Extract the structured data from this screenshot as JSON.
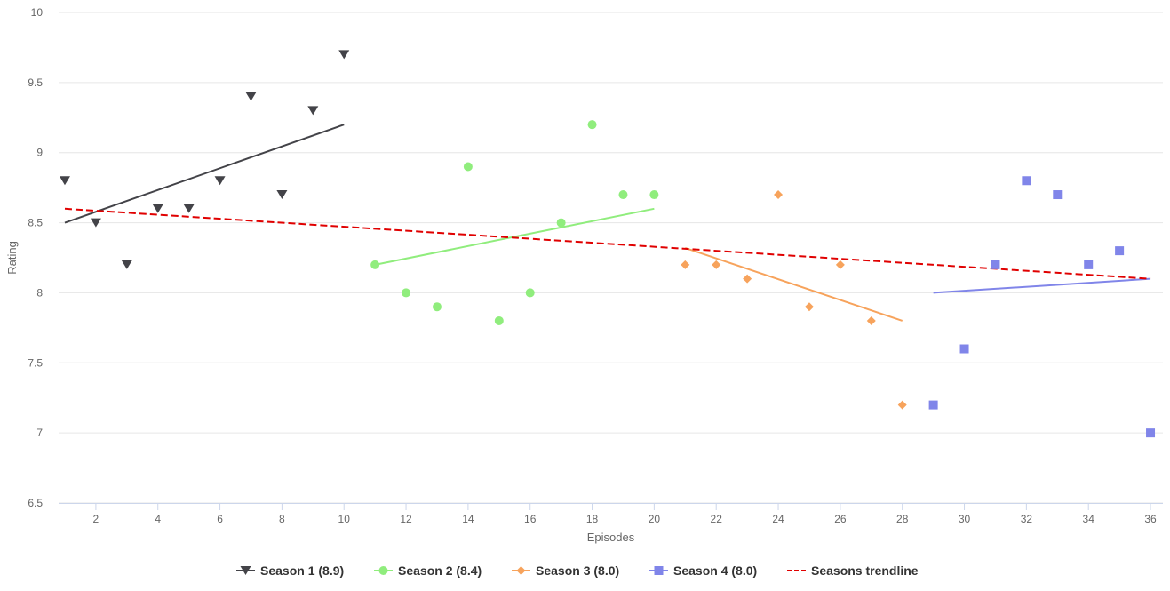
{
  "chart_data": {
    "type": "scatter",
    "xlabel": "Episodes",
    "ylabel": "Rating",
    "xlim": [
      0.8,
      36.4
    ],
    "ylim": [
      6.5,
      10
    ],
    "x_ticks": [
      2,
      4,
      6,
      8,
      10,
      12,
      14,
      16,
      18,
      20,
      22,
      24,
      26,
      28,
      30,
      32,
      34,
      36
    ],
    "y_ticks": [
      6.5,
      7,
      7.5,
      8,
      8.5,
      9,
      9.5,
      10
    ],
    "grid": "horizontal",
    "legend_position": "bottom-center",
    "series": [
      {
        "name": "Season 1 (8.9)",
        "color": "#434348",
        "marker": "triangle-down",
        "x": [
          1,
          2,
          3,
          4,
          5,
          6,
          7,
          8,
          9,
          10
        ],
        "y": [
          8.8,
          8.5,
          8.2,
          8.6,
          8.6,
          8.8,
          9.4,
          8.7,
          9.3,
          9.7
        ],
        "trend": [
          [
            1,
            8.5
          ],
          [
            10,
            9.2
          ]
        ]
      },
      {
        "name": "Season 2 (8.4)",
        "color": "#90ed7d",
        "marker": "circle",
        "x": [
          11,
          12,
          13,
          14,
          15,
          16,
          17,
          18,
          19,
          20
        ],
        "y": [
          8.2,
          8.0,
          7.9,
          8.9,
          7.8,
          8.0,
          8.5,
          9.2,
          8.7,
          8.7
        ],
        "trend": [
          [
            11,
            8.2
          ],
          [
            20,
            8.6
          ]
        ]
      },
      {
        "name": "Season 3 (8.0)",
        "color": "#f7a35c",
        "marker": "diamond",
        "x": [
          21,
          22,
          23,
          24,
          25,
          26,
          27,
          28
        ],
        "y": [
          8.2,
          8.2,
          8.1,
          8.7,
          7.9,
          8.2,
          7.8,
          7.2
        ],
        "trend": [
          [
            21,
            8.32
          ],
          [
            28,
            7.8
          ]
        ]
      },
      {
        "name": "Season 4 (8.0)",
        "color": "#8085e9",
        "marker": "square",
        "x": [
          29,
          30,
          31,
          32,
          33,
          34,
          35,
          36
        ],
        "y": [
          7.2,
          7.6,
          8.2,
          8.8,
          8.7,
          8.2,
          8.3,
          7.0
        ],
        "trend": [
          [
            29,
            8.0
          ],
          [
            36,
            8.1
          ]
        ]
      }
    ],
    "trendline": {
      "name": "Seasons trendline",
      "color": "#e00000",
      "style": "dashed",
      "points": [
        [
          1,
          8.6
        ],
        [
          36,
          8.1
        ]
      ]
    }
  }
}
